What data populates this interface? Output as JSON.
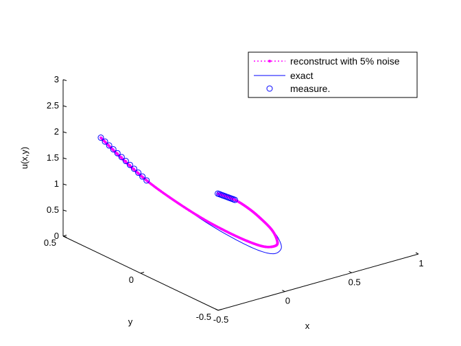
{
  "chart_data": {
    "type": "line",
    "projection": "3d",
    "title": "",
    "xlabel": "x",
    "ylabel": "y",
    "zlabel": "u(x,y)",
    "xlim": [
      -0.5,
      1
    ],
    "ylim": [
      -0.5,
      0.5
    ],
    "zlim": [
      0,
      3
    ],
    "x_ticks": [
      "-0.5",
      "0",
      "0.5",
      "1"
    ],
    "y_ticks": [
      "-0.5",
      "0",
      "0.5"
    ],
    "z_ticks": [
      "0",
      "0.5",
      "1",
      "1.5",
      "2",
      "2.5",
      "3"
    ],
    "grid": false,
    "legend_position": "top-right",
    "series": [
      {
        "name": "reconstruct with 5% noise",
        "style": "dotted-with-point-markers",
        "color": "#ff00ff",
        "points": [
          {
            "x": -0.38,
            "y": 0.36,
            "z": 2.0
          },
          {
            "x": -0.3,
            "y": 0.3,
            "z": 1.65
          },
          {
            "x": -0.2,
            "y": 0.22,
            "z": 1.25
          },
          {
            "x": -0.1,
            "y": 0.12,
            "z": 0.92
          },
          {
            "x": 0.0,
            "y": 0.02,
            "z": 0.64
          },
          {
            "x": 0.1,
            "y": -0.06,
            "z": 0.42
          },
          {
            "x": 0.2,
            "y": -0.11,
            "z": 0.24
          },
          {
            "x": 0.3,
            "y": -0.12,
            "z": 0.1
          },
          {
            "x": 0.4,
            "y": -0.1,
            "z": 0.03
          },
          {
            "x": 0.45,
            "y": -0.06,
            "z": 0.05
          },
          {
            "x": 0.47,
            "y": -0.01,
            "z": 0.15
          },
          {
            "x": 0.46,
            "y": 0.05,
            "z": 0.28
          },
          {
            "x": 0.43,
            "y": 0.1,
            "z": 0.42
          },
          {
            "x": 0.38,
            "y": 0.15,
            "z": 0.56
          },
          {
            "x": 0.31,
            "y": 0.2,
            "z": 0.66
          }
        ]
      },
      {
        "name": "exact",
        "style": "solid",
        "color": "#0000ff",
        "points": [
          {
            "x": -0.38,
            "y": 0.36,
            "z": 2.0
          },
          {
            "x": -0.3,
            "y": 0.3,
            "z": 1.65
          },
          {
            "x": -0.2,
            "y": 0.22,
            "z": 1.25
          },
          {
            "x": -0.1,
            "y": 0.12,
            "z": 0.92
          },
          {
            "x": 0.0,
            "y": 0.0,
            "z": 0.6
          },
          {
            "x": 0.1,
            "y": -0.1,
            "z": 0.35
          },
          {
            "x": 0.2,
            "y": -0.16,
            "z": 0.16
          },
          {
            "x": 0.3,
            "y": -0.17,
            "z": 0.04
          },
          {
            "x": 0.4,
            "y": -0.13,
            "z": 0.0
          },
          {
            "x": 0.45,
            "y": -0.08,
            "z": 0.04
          },
          {
            "x": 0.47,
            "y": -0.02,
            "z": 0.14
          },
          {
            "x": 0.46,
            "y": 0.05,
            "z": 0.28
          },
          {
            "x": 0.43,
            "y": 0.1,
            "z": 0.42
          },
          {
            "x": 0.38,
            "y": 0.15,
            "z": 0.56
          },
          {
            "x": 0.31,
            "y": 0.2,
            "z": 0.66
          }
        ]
      },
      {
        "name": "measure.",
        "style": "circle-markers",
        "color": "#0000ff",
        "groups": [
          {
            "from": {
              "x": -0.38,
              "y": 0.36,
              "z": 2.0
            },
            "to": {
              "x": -0.2,
              "y": 0.22,
              "z": 1.25
            },
            "count": 12
          },
          {
            "from": {
              "x": 0.31,
              "y": 0.2,
              "z": 0.66
            },
            "to": {
              "x": 0.38,
              "y": 0.15,
              "z": 0.56
            },
            "count": 12
          }
        ]
      }
    ]
  }
}
